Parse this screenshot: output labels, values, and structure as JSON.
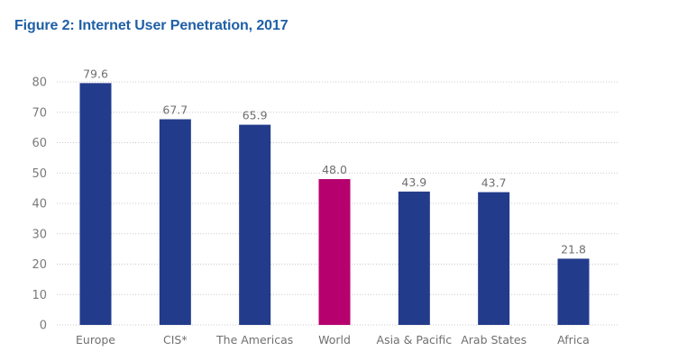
{
  "chart_data": {
    "type": "bar",
    "title": "Figure 2: Internet User Penetration, 2017",
    "xlabel": "",
    "ylabel": "",
    "categories": [
      "Europe",
      "CIS*",
      "The Americas",
      "World",
      "Asia & Pacific",
      "Arab States",
      "Africa"
    ],
    "values": [
      79.6,
      67.7,
      65.9,
      48.0,
      43.9,
      43.7,
      21.8
    ],
    "value_labels": [
      "79.6",
      "67.7",
      "65.9",
      "48.0",
      "43.9",
      "43.7",
      "21.8"
    ],
    "ylim": [
      0,
      80
    ],
    "yticks": [
      0,
      10,
      20,
      30,
      40,
      50,
      60,
      70,
      80
    ],
    "grid": true,
    "legend": "none",
    "colors": {
      "default_bar": "#233b8b",
      "highlight_bar": "#b5006e",
      "highlight_category": "World",
      "title": "#1f5fa6",
      "grid": "#c8c8c8",
      "text": "#707070"
    }
  }
}
